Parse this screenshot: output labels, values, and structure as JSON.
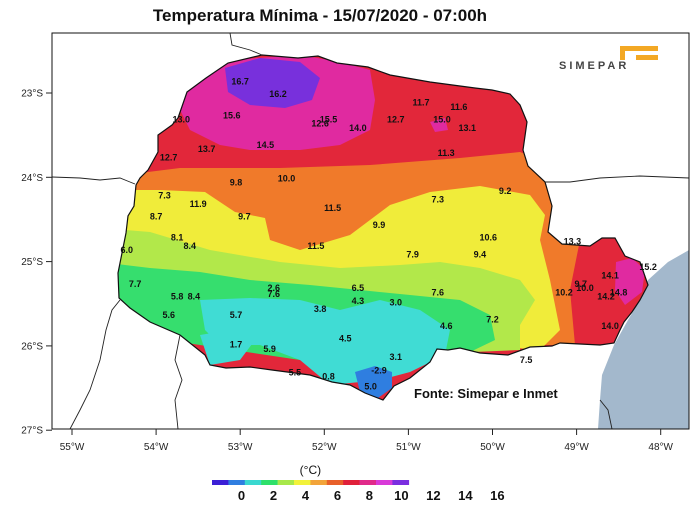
{
  "title": "Temperatura Mínima - 15/07/2020 - 07:00h",
  "logo_text": "SIMEPAR",
  "source_note": "Fonte: Simepar e Inmet",
  "colorbar": {
    "unit": "(°C)",
    "ticks": [
      "0",
      "2",
      "4",
      "6",
      "8",
      "10",
      "12",
      "14",
      "16"
    ],
    "colors": [
      "#3b1fd6",
      "#2f7ee0",
      "#3ad8d0",
      "#2ee06a",
      "#a8e84a",
      "#f2f23a",
      "#f2a43a",
      "#e8602a",
      "#e0203a",
      "#e02a8a",
      "#d83ad8",
      "#7a2ee0"
    ]
  },
  "axes": {
    "lon_labels": [
      "55°W",
      "54°W",
      "53°W",
      "52°W",
      "51°W",
      "50°W",
      "49°W",
      "48°W"
    ],
    "lat_labels": [
      "23°S",
      "24°S",
      "25°S",
      "26°S",
      "27°S"
    ]
  },
  "stations": [
    {
      "t": "16.7",
      "lon": -53.0,
      "lat": -22.9
    },
    {
      "t": "16.2",
      "lon": -52.55,
      "lat": -23.05
    },
    {
      "t": "13.0",
      "lon": -53.7,
      "lat": -23.35
    },
    {
      "t": "15.6",
      "lon": -53.1,
      "lat": -23.3
    },
    {
      "t": "12.6",
      "lon": -52.05,
      "lat": -23.4
    },
    {
      "t": "15.5",
      "lon": -51.95,
      "lat": -23.35
    },
    {
      "t": "14.0",
      "lon": -51.6,
      "lat": -23.45
    },
    {
      "t": "12.7",
      "lon": -51.15,
      "lat": -23.35
    },
    {
      "t": "11.7",
      "lon": -50.85,
      "lat": -23.15
    },
    {
      "t": "11.6",
      "lon": -50.4,
      "lat": -23.2
    },
    {
      "t": "15.0",
      "lon": -50.6,
      "lat": -23.35
    },
    {
      "t": "13.1",
      "lon": -50.3,
      "lat": -23.45
    },
    {
      "t": "13.7",
      "lon": -53.4,
      "lat": -23.7
    },
    {
      "t": "14.5",
      "lon": -52.7,
      "lat": -23.65
    },
    {
      "t": "12.7",
      "lon": -53.85,
      "lat": -23.8
    },
    {
      "t": "11.3",
      "lon": -50.55,
      "lat": -23.75
    },
    {
      "t": "9.8",
      "lon": -53.05,
      "lat": -24.1
    },
    {
      "t": "10.0",
      "lon": -52.45,
      "lat": -24.05
    },
    {
      "t": "9.2",
      "lon": -49.85,
      "lat": -24.2
    },
    {
      "t": "7.3",
      "lon": -53.9,
      "lat": -24.25
    },
    {
      "t": "11.9",
      "lon": -53.5,
      "lat": -24.35
    },
    {
      "t": "7.3",
      "lon": -50.65,
      "lat": -24.3
    },
    {
      "t": "11.5",
      "lon": -51.9,
      "lat": -24.4
    },
    {
      "t": "8.7",
      "lon": -54.0,
      "lat": -24.5
    },
    {
      "t": "9.7",
      "lon": -52.95,
      "lat": -24.5
    },
    {
      "t": "9.9",
      "lon": -51.35,
      "lat": -24.6
    },
    {
      "t": "8.1",
      "lon": -53.75,
      "lat": -24.75
    },
    {
      "t": "8.4",
      "lon": -53.6,
      "lat": -24.85
    },
    {
      "t": "11.5",
      "lon": -52.1,
      "lat": -24.85
    },
    {
      "t": "10.6",
      "lon": -50.05,
      "lat": -24.75
    },
    {
      "t": "13.3",
      "lon": -49.05,
      "lat": -24.8
    },
    {
      "t": "6.0",
      "lon": -54.35,
      "lat": -24.9
    },
    {
      "t": "7.9",
      "lon": -50.95,
      "lat": -24.95
    },
    {
      "t": "9.4",
      "lon": -50.15,
      "lat": -24.95
    },
    {
      "t": "14.1",
      "lon": -48.6,
      "lat": -25.2
    },
    {
      "t": "15.2",
      "lon": -48.15,
      "lat": -25.1
    },
    {
      "t": "7.7",
      "lon": -54.25,
      "lat": -25.3
    },
    {
      "t": "9.7",
      "lon": -48.95,
      "lat": -25.3
    },
    {
      "t": "10.0",
      "lon": -48.9,
      "lat": -25.35
    },
    {
      "t": "2.6",
      "lon": -52.6,
      "lat": -25.35
    },
    {
      "t": "7.6",
      "lon": -52.6,
      "lat": -25.42
    },
    {
      "t": "6.5",
      "lon": -51.6,
      "lat": -25.35
    },
    {
      "t": "10.2",
      "lon": -49.15,
      "lat": -25.4
    },
    {
      "t": "14.8",
      "lon": -48.5,
      "lat": -25.4
    },
    {
      "t": "14.2",
      "lon": -48.65,
      "lat": -25.45
    },
    {
      "t": "7.6",
      "lon": -50.65,
      "lat": -25.4
    },
    {
      "t": "5.8",
      "lon": -53.75,
      "lat": -25.45
    },
    {
      "t": "8.4",
      "lon": -53.55,
      "lat": -25.45
    },
    {
      "t": "4.3",
      "lon": -51.6,
      "lat": -25.5
    },
    {
      "t": "3.0",
      "lon": -51.15,
      "lat": -25.52
    },
    {
      "t": "3.8",
      "lon": -52.05,
      "lat": -25.6
    },
    {
      "t": "5.6",
      "lon": -53.85,
      "lat": -25.67
    },
    {
      "t": "5.7",
      "lon": -53.05,
      "lat": -25.67
    },
    {
      "t": "7.2",
      "lon": -50.0,
      "lat": -25.72
    },
    {
      "t": "4.6",
      "lon": -50.55,
      "lat": -25.8
    },
    {
      "t": "14.0",
      "lon": -48.6,
      "lat": -25.8
    },
    {
      "t": "4.5",
      "lon": -51.75,
      "lat": -25.95
    },
    {
      "t": "1.7",
      "lon": -53.05,
      "lat": -26.02
    },
    {
      "t": "5.9",
      "lon": -52.65,
      "lat": -26.07
    },
    {
      "t": "3.1",
      "lon": -51.15,
      "lat": -26.17
    },
    {
      "t": "7.5",
      "lon": -49.6,
      "lat": -26.2
    },
    {
      "t": "5.5",
      "lon": -52.35,
      "lat": -26.35
    },
    {
      "t": "0.8",
      "lon": -51.95,
      "lat": -26.4
    },
    {
      "t": "-2.9",
      "lon": -51.35,
      "lat": -26.33
    },
    {
      "t": "5.0",
      "lon": -51.45,
      "lat": -26.52
    }
  ]
}
